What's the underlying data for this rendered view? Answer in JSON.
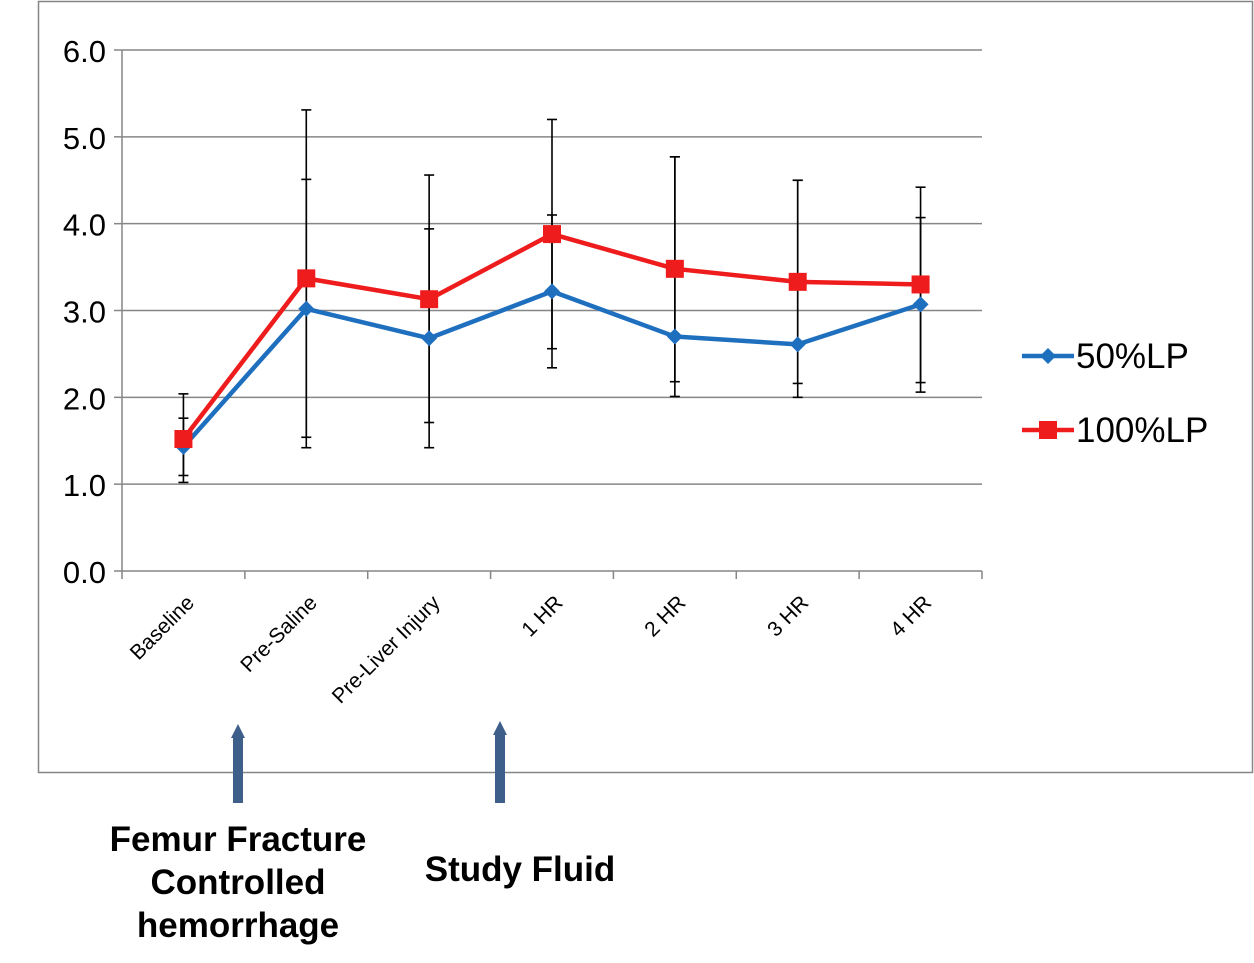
{
  "chart_data": {
    "type": "line",
    "categories": [
      "Baseline",
      "Pre-Saline",
      "Pre-Liver Injury",
      "1 HR",
      "2 HR",
      "3 HR",
      "4 HR"
    ],
    "ylim": [
      0.0,
      6.0
    ],
    "yticks": [
      "0.0",
      "1.0",
      "2.0",
      "3.0",
      "4.0",
      "5.0",
      "6.0"
    ],
    "grid": true,
    "legend_position": "right",
    "series": [
      {
        "name": "50%LP",
        "color": "#1F6FBF",
        "marker": "diamond",
        "values": [
          1.43,
          3.02,
          2.68,
          3.22,
          2.7,
          2.61,
          3.07
        ],
        "err_low": [
          1.02,
          1.42,
          1.42,
          2.34,
          2.01,
          2.0,
          2.06
        ],
        "err_high": [
          1.76,
          4.51,
          3.94,
          4.1,
          4.77,
          4.5,
          4.07
        ]
      },
      {
        "name": "100%LP",
        "color": "#EE1C1C",
        "marker": "square",
        "values": [
          1.52,
          3.37,
          3.13,
          3.88,
          3.48,
          3.33,
          3.3
        ],
        "err_low": [
          1.1,
          1.54,
          1.71,
          2.56,
          2.18,
          2.16,
          2.17
        ],
        "err_high": [
          2.04,
          5.31,
          4.56,
          5.2,
          4.77,
          4.5,
          4.42
        ]
      }
    ]
  },
  "annotations": {
    "femur": "Femur Fracture\nControlled\nhemorrhage",
    "study": "Study Fluid"
  },
  "colors": {
    "arrow": "#3E5F8A",
    "axis": "#868686",
    "grid": "#868686",
    "error_bar": "#000000"
  }
}
